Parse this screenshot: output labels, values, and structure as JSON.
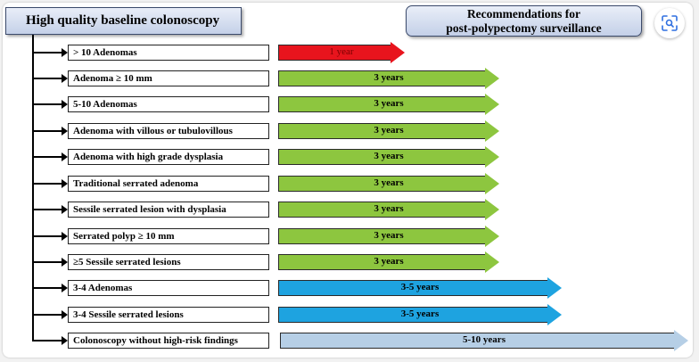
{
  "header": {
    "title": "High quality baseline colonoscopy"
  },
  "recommendations": {
    "line1": "Recommendations for",
    "line2": "post-polypectomy surveillance"
  },
  "toolbar": {
    "icon": "scan-icon"
  },
  "colors": {
    "red": "#e8141d",
    "green": "#8dc63f",
    "blue": "#1ea3e0",
    "light_blue": "#b6cfe6"
  },
  "rows": [
    {
      "condition": "> 10 Adenomas",
      "interval": "1 year",
      "color": "red"
    },
    {
      "condition": "Adenoma ≥ 10 mm",
      "interval": "3 years",
      "color": "green"
    },
    {
      "condition": "5-10 Adenomas",
      "interval": "3 years",
      "color": "green"
    },
    {
      "condition": "Adenoma with villous or tubulovillous",
      "interval": "3 years",
      "color": "green"
    },
    {
      "condition": "Adenoma with high grade dysplasia",
      "interval": "3 years",
      "color": "green"
    },
    {
      "condition": "Traditional serrated adenoma",
      "interval": "3 years",
      "color": "green"
    },
    {
      "condition": "Sessile serrated lesion with dysplasia",
      "interval": "3 years",
      "color": "green"
    },
    {
      "condition": "Serrated polyp ≥ 10 mm",
      "interval": "3 years",
      "color": "green"
    },
    {
      "condition": "≥5 Sessile serrated lesions",
      "interval": "3 years",
      "color": "green"
    },
    {
      "condition": "3-4 Adenomas",
      "interval": "3-5 years",
      "color": "blue"
    },
    {
      "condition": "3-4 Sessile serrated lesions",
      "interval": "3-5 years",
      "color": "blue"
    },
    {
      "condition": "Colonoscopy without high-risk findings",
      "interval": "5-10 years",
      "color": "light_blue"
    }
  ]
}
